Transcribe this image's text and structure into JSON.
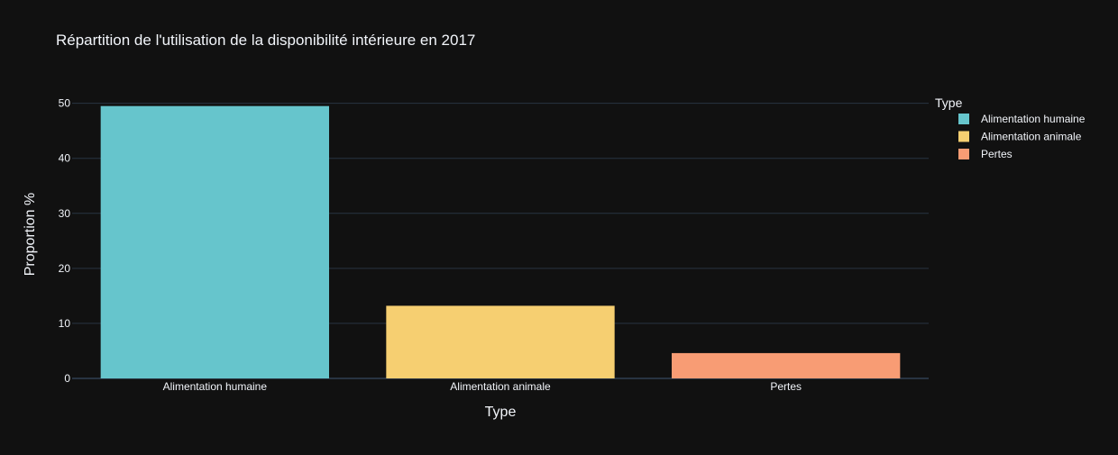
{
  "chart_data": {
    "type": "bar",
    "title": "Répartition de l'utilisation de la disponibilité intérieure en 2017",
    "xlabel": "Type",
    "ylabel": "Proportion %",
    "categories": [
      "Alimentation humaine",
      "Alimentation animale",
      "Pertes"
    ],
    "values": [
      49.5,
      13.2,
      4.6
    ],
    "colors": [
      "#66c5cc",
      "#f6cf71",
      "#f89c74"
    ],
    "ylim": [
      0,
      52.4
    ],
    "yticks": [
      0,
      10,
      20,
      30,
      40,
      50
    ],
    "grid": true,
    "legend": {
      "title": "Type",
      "position": "top-right",
      "items": [
        "Alimentation humaine",
        "Alimentation animale",
        "Pertes"
      ]
    },
    "background": "#111111",
    "grid_color": "#283442",
    "text_color": "#f2f5fa"
  }
}
